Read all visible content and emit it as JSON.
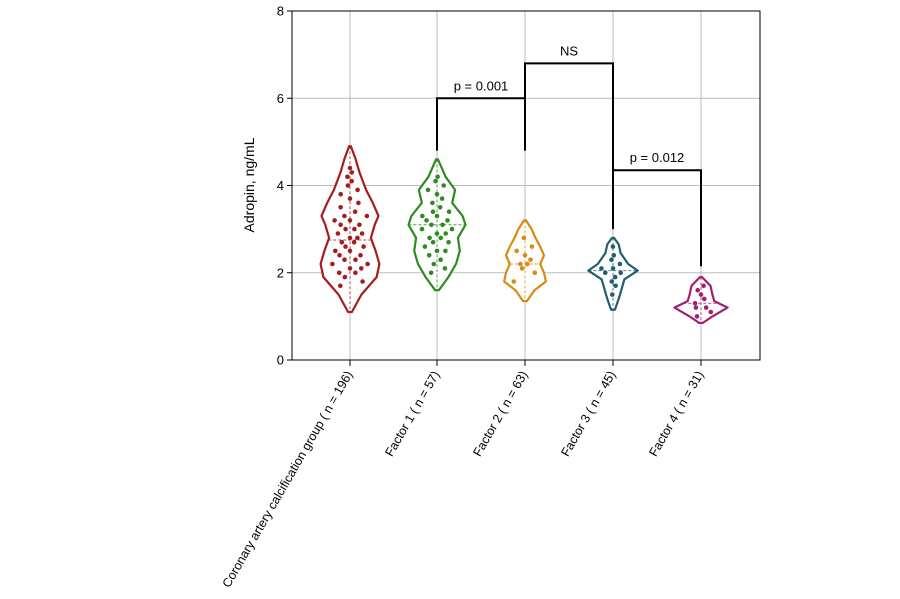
{
  "chart_data": {
    "type": "violin",
    "ylabel": "Adropin, ng/mL",
    "ylim": [
      0,
      8
    ],
    "yticks": [
      "0",
      "2",
      "4",
      "6",
      "8"
    ],
    "grid": true,
    "groups": [
      {
        "name": "group-cac",
        "label": "Coronary artery calcification group ( n = 196)",
        "color": "#a31f1f",
        "min": 1.1,
        "max": 4.9,
        "mean": 2.75,
        "profile": [
          [
            1.1,
            0.02
          ],
          [
            1.5,
            0.12
          ],
          [
            1.9,
            0.28
          ],
          [
            2.2,
            0.31
          ],
          [
            2.5,
            0.27
          ],
          [
            2.8,
            0.22
          ],
          [
            3.1,
            0.26
          ],
          [
            3.3,
            0.3
          ],
          [
            3.6,
            0.24
          ],
          [
            3.9,
            0.17
          ],
          [
            4.3,
            0.1
          ],
          [
            4.6,
            0.06
          ],
          [
            4.9,
            0.01
          ]
        ],
        "points": [
          1.7,
          1.8,
          1.9,
          2.0,
          2.0,
          2.1,
          2.1,
          2.2,
          2.2,
          2.3,
          2.3,
          2.4,
          2.4,
          2.5,
          2.5,
          2.6,
          2.6,
          2.7,
          2.7,
          2.8,
          2.8,
          2.9,
          2.9,
          3.0,
          3.0,
          3.1,
          3.1,
          3.2,
          3.2,
          3.3,
          3.3,
          3.4,
          3.5,
          3.6,
          3.7,
          3.8,
          3.9,
          4.0,
          4.1,
          4.2,
          4.3,
          4.4
        ]
      },
      {
        "name": "group-factor-1",
        "label": "Factor 1 ( n = 57)",
        "color": "#2e8b1f",
        "min": 1.6,
        "max": 4.6,
        "mean": 3.1,
        "profile": [
          [
            1.6,
            0.02
          ],
          [
            1.9,
            0.12
          ],
          [
            2.2,
            0.2
          ],
          [
            2.5,
            0.24
          ],
          [
            2.8,
            0.22
          ],
          [
            3.1,
            0.3
          ],
          [
            3.3,
            0.27
          ],
          [
            3.6,
            0.16
          ],
          [
            3.9,
            0.19
          ],
          [
            4.2,
            0.09
          ],
          [
            4.4,
            0.05
          ],
          [
            4.6,
            0.01
          ]
        ],
        "points": [
          2.0,
          2.1,
          2.2,
          2.3,
          2.4,
          2.5,
          2.5,
          2.6,
          2.7,
          2.7,
          2.8,
          2.8,
          2.9,
          2.9,
          3.0,
          3.0,
          3.1,
          3.1,
          3.2,
          3.2,
          3.3,
          3.3,
          3.4,
          3.4,
          3.5,
          3.6,
          3.7,
          3.8,
          3.9,
          4.0,
          4.1,
          4.2
        ]
      },
      {
        "name": "group-factor-2",
        "label": "Factor 2 ( n = 63)",
        "color": "#d98a14",
        "min": 1.35,
        "max": 3.2,
        "mean": 2.2,
        "profile": [
          [
            1.35,
            0.02
          ],
          [
            1.6,
            0.1
          ],
          [
            1.8,
            0.22
          ],
          [
            2.0,
            0.2
          ],
          [
            2.2,
            0.16
          ],
          [
            2.4,
            0.2
          ],
          [
            2.6,
            0.16
          ],
          [
            2.8,
            0.11
          ],
          [
            3.0,
            0.07
          ],
          [
            3.2,
            0.01
          ]
        ],
        "points": [
          1.8,
          2.0,
          2.1,
          2.2,
          2.2,
          2.3,
          2.4,
          2.5,
          2.6,
          2.8
        ]
      },
      {
        "name": "group-factor-3",
        "label": "Factor 3 ( n = 45)",
        "color": "#1f5f70",
        "min": 1.15,
        "max": 2.8,
        "mean": 2.05,
        "profile": [
          [
            1.15,
            0.02
          ],
          [
            1.4,
            0.06
          ],
          [
            1.7,
            0.1
          ],
          [
            1.85,
            0.12
          ],
          [
            2.05,
            0.26
          ],
          [
            2.2,
            0.16
          ],
          [
            2.45,
            0.08
          ],
          [
            2.65,
            0.06
          ],
          [
            2.8,
            0.01
          ]
        ],
        "points": [
          1.5,
          1.7,
          1.8,
          1.9,
          2.0,
          2.0,
          2.1,
          2.1,
          2.2,
          2.3,
          2.4,
          2.6
        ]
      },
      {
        "name": "group-factor-4",
        "label": "Factor 4 ( n = 31)",
        "color": "#a3206f",
        "min": 0.85,
        "max": 1.9,
        "mean": 1.3,
        "profile": [
          [
            0.85,
            0.02
          ],
          [
            1.0,
            0.12
          ],
          [
            1.2,
            0.28
          ],
          [
            1.35,
            0.14
          ],
          [
            1.5,
            0.12
          ],
          [
            1.7,
            0.1
          ],
          [
            1.9,
            0.01
          ]
        ],
        "points": [
          1.0,
          1.1,
          1.2,
          1.2,
          1.3,
          1.4,
          1.5,
          1.6,
          1.7
        ]
      }
    ],
    "comparisons": [
      {
        "name": "comparison-factor1-factor2",
        "label": "p = 0.001",
        "from": 1,
        "to": 2,
        "y": 6.0,
        "left_drop_to": 4.8,
        "right_drop_to": 4.8
      },
      {
        "name": "comparison-factor2-factor3",
        "label": "NS",
        "from": 2,
        "to": 3,
        "y": 6.8,
        "left_drop_to": 6.0,
        "right_drop_to": 4.35
      },
      {
        "name": "comparison-factor3-factor4",
        "label": "p = 0.012",
        "from": 3,
        "to": 4,
        "y": 4.35,
        "left_drop_to": 3.0,
        "right_drop_to": 2.15
      }
    ]
  }
}
